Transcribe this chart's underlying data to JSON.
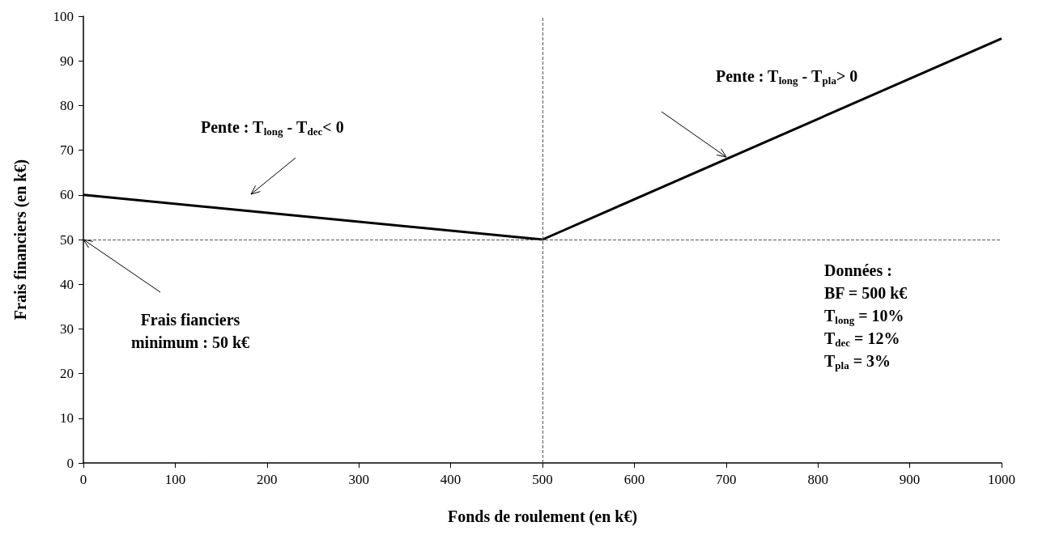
{
  "chart_data": {
    "type": "line",
    "xlabel": "Fonds de roulement (en k€)",
    "ylabel": "Frais financiers (en k€)",
    "x": [
      0,
      500,
      1000
    ],
    "series": [
      {
        "color": "#000000",
        "values": [
          60,
          50,
          95
        ]
      }
    ],
    "xlim": [
      0,
      1000
    ],
    "xticks": [
      0,
      100,
      200,
      300,
      400,
      500,
      600,
      700,
      800,
      900,
      1000
    ],
    "ylim": [
      0,
      100
    ],
    "yticks": [
      0,
      10,
      20,
      30,
      40,
      50,
      60,
      70,
      80,
      90,
      100
    ],
    "grid": false,
    "line_style": "solid",
    "ref_lines": [
      {
        "axis": "y",
        "value": 50,
        "color": "#555555",
        "line_style": "dashed"
      },
      {
        "axis": "x",
        "value": 500,
        "color": "#555555",
        "line_style": "dashed"
      }
    ],
    "annotations": [
      "Pente : T$_{long}$ - T$_{dec}$< 0",
      "Pente : T$_{long}$ - T$_{pla}$> 0",
      {
        "text": "Frais fianciers\nminimum : 50 k€",
        "x": 0,
        "y": 50
      },
      "Données :\nBF = 500 k€\nT$_{long}$ = 10%\nT$_{dec}$ = 12%\nT$_{pla}$ = 3%"
    ]
  }
}
